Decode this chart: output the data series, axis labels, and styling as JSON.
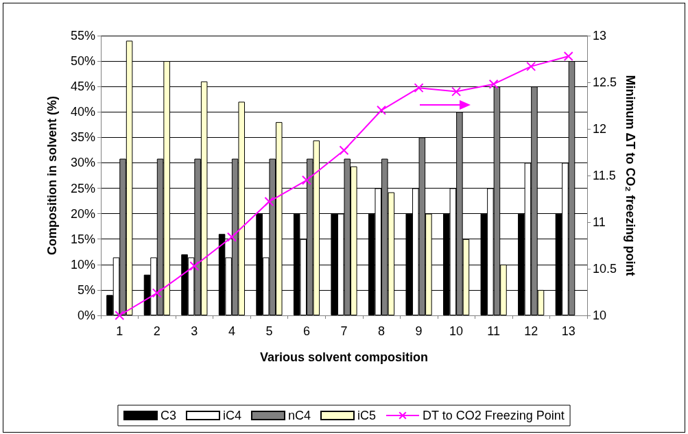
{
  "chart_data": {
    "type": "bar",
    "xlabel": "Various solvent composition",
    "ylabel": "Composition in solvent (%)",
    "y2label": "Minimum ΔT to CO₂ freezing point",
    "categories": [
      "1",
      "2",
      "3",
      "4",
      "5",
      "6",
      "7",
      "8",
      "9",
      "10",
      "11",
      "12",
      "13"
    ],
    "series": [
      {
        "name": "C3",
        "color": "#000000",
        "values": [
          4,
          8,
          12,
          16,
          20,
          20,
          20,
          20,
          20,
          20,
          20,
          20,
          20
        ]
      },
      {
        "name": "iC4",
        "color": "#ffffff",
        "values": [
          11.4,
          11.4,
          11.4,
          11.4,
          11.4,
          15,
          20,
          25,
          25,
          25,
          25,
          30,
          30
        ]
      },
      {
        "name": "nC4",
        "color": "#808080",
        "values": [
          30.8,
          30.8,
          30.8,
          30.8,
          30.8,
          30.8,
          30.8,
          30.8,
          35,
          40,
          45,
          45,
          50
        ]
      },
      {
        "name": "iC5",
        "color": "#ffffcc",
        "values": [
          54,
          50,
          46,
          42,
          38,
          34.4,
          29.3,
          24.2,
          20,
          15,
          10,
          5,
          null
        ]
      },
      {
        "name": "DT to CO2 Freezing Point",
        "type": "line",
        "axis": "y2",
        "color": "#ff00ff",
        "marker": "cross",
        "values": [
          10,
          10.24,
          10.53,
          10.84,
          11.22,
          11.45,
          11.77,
          12.2,
          12.44,
          12.4,
          12.48,
          12.67,
          12.78
        ]
      }
    ],
    "ylim": [
      0,
      55
    ],
    "yticks": [
      {
        "value": 0,
        "label": "0%"
      },
      {
        "value": 5,
        "label": "5%"
      },
      {
        "value": 10,
        "label": "10%"
      },
      {
        "value": 15,
        "label": "15%"
      },
      {
        "value": 20,
        "label": "20%"
      },
      {
        "value": 25,
        "label": "25%"
      },
      {
        "value": 30,
        "label": "30%"
      },
      {
        "value": 35,
        "label": "35%"
      },
      {
        "value": 40,
        "label": "40%"
      },
      {
        "value": 45,
        "label": "45%"
      },
      {
        "value": 50,
        "label": "50%"
      },
      {
        "value": 55,
        "label": "55%"
      }
    ],
    "y2lim": [
      10,
      13
    ],
    "y2ticks": [
      10,
      10.5,
      11,
      11.5,
      12,
      12.5,
      13
    ],
    "grid": "y",
    "legend": "bottom"
  }
}
